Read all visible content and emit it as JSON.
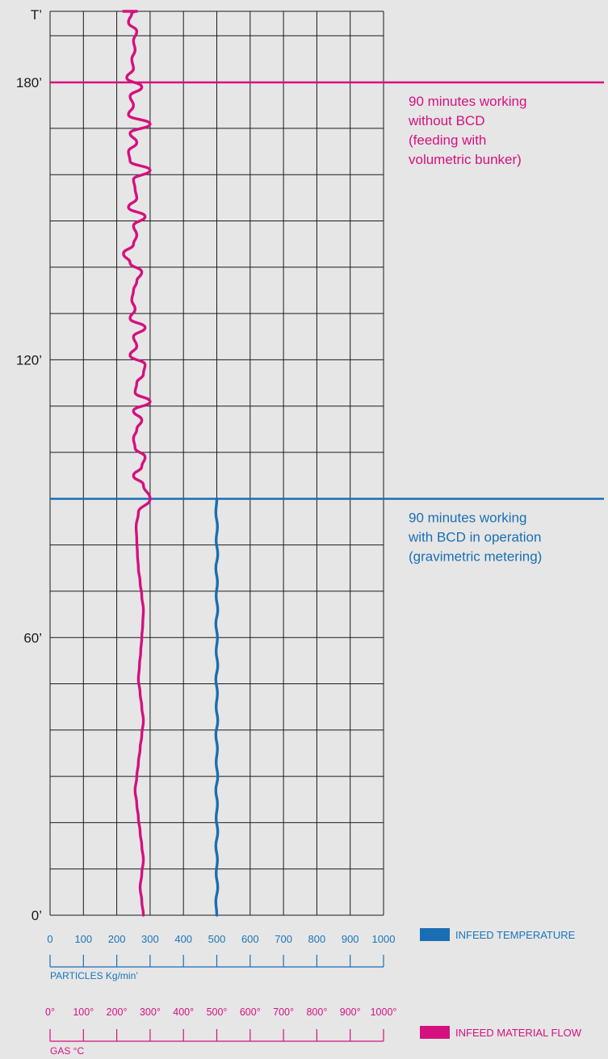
{
  "colors": {
    "background": "#e6e6e6",
    "grid": "#1a1a1a",
    "temperature": "#1a6eb3",
    "material": "#d4117f"
  },
  "chart_data": {
    "type": "line",
    "y_axis": {
      "label": "T’",
      "range": [
        0,
        180
      ],
      "tick_labels": [
        {
          "value": 0,
          "text": "0’"
        },
        {
          "value": 60,
          "text": "60’"
        },
        {
          "value": 120,
          "text": "120’"
        },
        {
          "value": 180,
          "text": "180’"
        }
      ]
    },
    "x_axis_particles": {
      "label": "PARTICLES Kg/min’",
      "range": [
        0,
        1000
      ],
      "ticks": [
        "0",
        "100",
        "200",
        "300",
        "400",
        "500",
        "600",
        "700",
        "800",
        "900",
        "1000"
      ]
    },
    "x_axis_gas": {
      "label": "GAS °C",
      "range": [
        0,
        1000
      ],
      "ticks": [
        "0°",
        "100°",
        "200°",
        "300°",
        "400°",
        "500°",
        "600°",
        "700°",
        "800°",
        "900°",
        "1000°"
      ]
    },
    "grid": true,
    "legend": [
      {
        "key": "temperature",
        "label": "INFEED TEMPERATURE",
        "color": "#1a6eb3"
      },
      {
        "key": "material",
        "label": "INFEED MATERIAL FLOW",
        "color": "#d4117f"
      }
    ],
    "reference_lines": [
      {
        "y": 180,
        "color": "#d4117f",
        "text": [
          "90 minutes working",
          "without BCD",
          "(feeding with",
          "volumetric bunker)"
        ]
      },
      {
        "y": 90,
        "color": "#1a6eb3",
        "text": [
          "90 minutes working",
          "with BCD in operation",
          "(gravimetric metering)"
        ]
      }
    ],
    "series": [
      {
        "key": "material",
        "x": [
          280,
          275,
          270,
          275,
          280,
          275,
          270,
          265,
          260,
          255,
          260,
          265,
          270,
          275,
          280,
          275,
          270,
          265,
          268,
          272,
          275,
          278,
          280,
          275,
          270,
          265,
          262,
          260,
          258,
          265,
          300,
          280,
          250,
          275,
          285,
          255,
          250,
          260,
          275,
          250,
          300,
          255,
          260,
          280,
          285,
          240,
          260,
          250,
          285,
          240,
          255,
          245,
          250,
          260,
          275,
          240,
          220,
          250,
          260,
          250,
          285,
          235,
          260,
          255,
          250,
          300,
          240,
          235,
          260,
          240,
          300,
          235,
          250,
          240,
          275,
          230,
          250,
          245,
          255,
          250,
          260,
          235,
          245,
          255,
          240,
          250,
          220,
          260,
          235,
          245,
          260,
          230,
          245,
          255,
          250,
          250,
          245,
          240
        ],
        "y": [
          0,
          3,
          6,
          9,
          12,
          15,
          18,
          21,
          24,
          27,
          30,
          33,
          36,
          39,
          42,
          45,
          48,
          51,
          54,
          57,
          60,
          63,
          66,
          69,
          72,
          75,
          78,
          81,
          84,
          87,
          90,
          93,
          95,
          97,
          99,
          101,
          103,
          105,
          107,
          109,
          111,
          113,
          115,
          117,
          119,
          121,
          123,
          125,
          127,
          129,
          131,
          133,
          135,
          137,
          139,
          141,
          143,
          145,
          147,
          149,
          151,
          153,
          155,
          157,
          159,
          161,
          163,
          165,
          167,
          169,
          171,
          173,
          175,
          177,
          179,
          181,
          183,
          185,
          187,
          189,
          191,
          193,
          195,
          196,
          197,
          198,
          199,
          200,
          201,
          202,
          203,
          204,
          205,
          206,
          207,
          208,
          209,
          210
        ]
      },
      {
        "key": "temperature",
        "x": [
          500,
          497,
          503,
          498,
          502,
          497,
          503,
          498,
          502,
          497,
          503,
          498,
          502,
          497,
          503,
          498,
          502,
          497,
          503,
          498,
          502,
          497,
          503,
          498,
          502,
          497,
          503,
          498,
          502,
          497,
          500
        ],
        "y": [
          0,
          3,
          6,
          9,
          12,
          15,
          18,
          21,
          24,
          27,
          30,
          33,
          36,
          39,
          42,
          45,
          48,
          51,
          54,
          57,
          60,
          63,
          66,
          69,
          72,
          75,
          78,
          81,
          84,
          87,
          90
        ]
      }
    ]
  }
}
